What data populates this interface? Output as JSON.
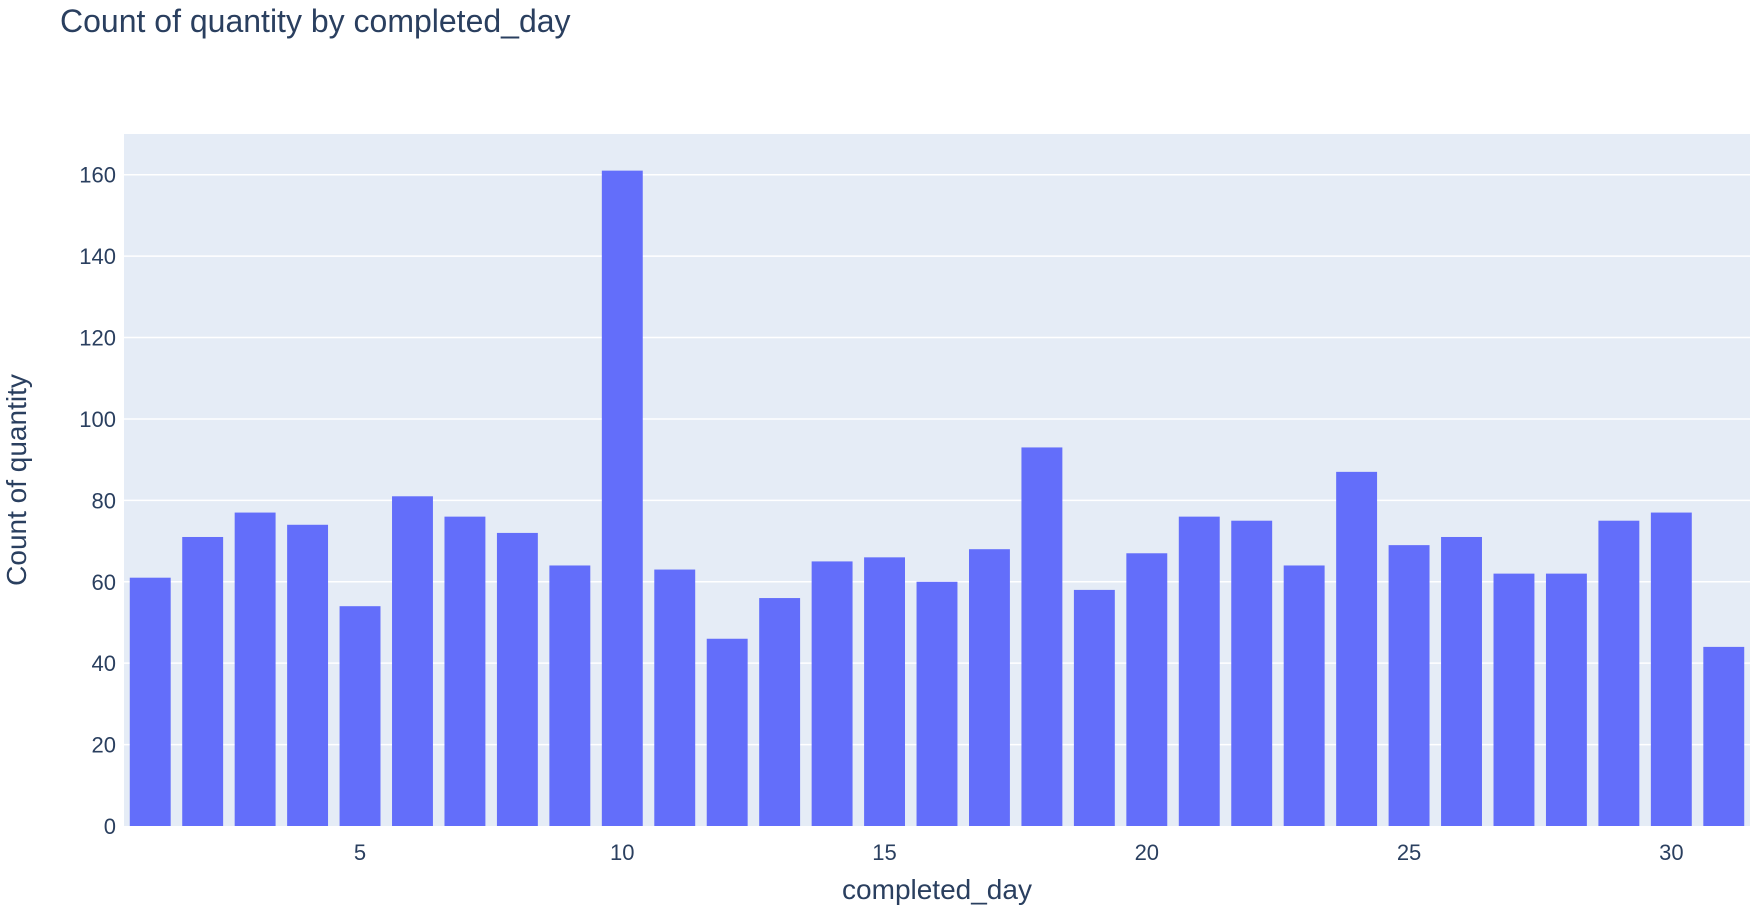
{
  "chart_data": {
    "type": "bar",
    "title": "Count of quantity by completed_day",
    "xlabel": "completed_day",
    "ylabel": "Count of quantity",
    "x": [
      1,
      2,
      3,
      4,
      5,
      6,
      7,
      8,
      9,
      10,
      11,
      12,
      13,
      14,
      15,
      16,
      17,
      18,
      19,
      20,
      21,
      22,
      23,
      24,
      25,
      26,
      27,
      28,
      29,
      30,
      31
    ],
    "values": [
      61,
      71,
      77,
      74,
      54,
      81,
      76,
      72,
      64,
      161,
      63,
      46,
      56,
      65,
      66,
      60,
      68,
      93,
      58,
      67,
      76,
      75,
      64,
      87,
      69,
      71,
      62,
      62,
      75,
      77,
      44
    ],
    "xlim": [
      0.5,
      31.5
    ],
    "ylim": [
      0,
      170
    ],
    "xticks": [
      5,
      10,
      15,
      20,
      25,
      30
    ],
    "yticks": [
      0,
      20,
      40,
      60,
      80,
      100,
      120,
      140,
      160
    ],
    "grid": true,
    "colors": {
      "bar": "#636efa",
      "plot_background": "#e5ecf6",
      "gridline": "#ffffff",
      "text": "#2a3f5f"
    }
  }
}
